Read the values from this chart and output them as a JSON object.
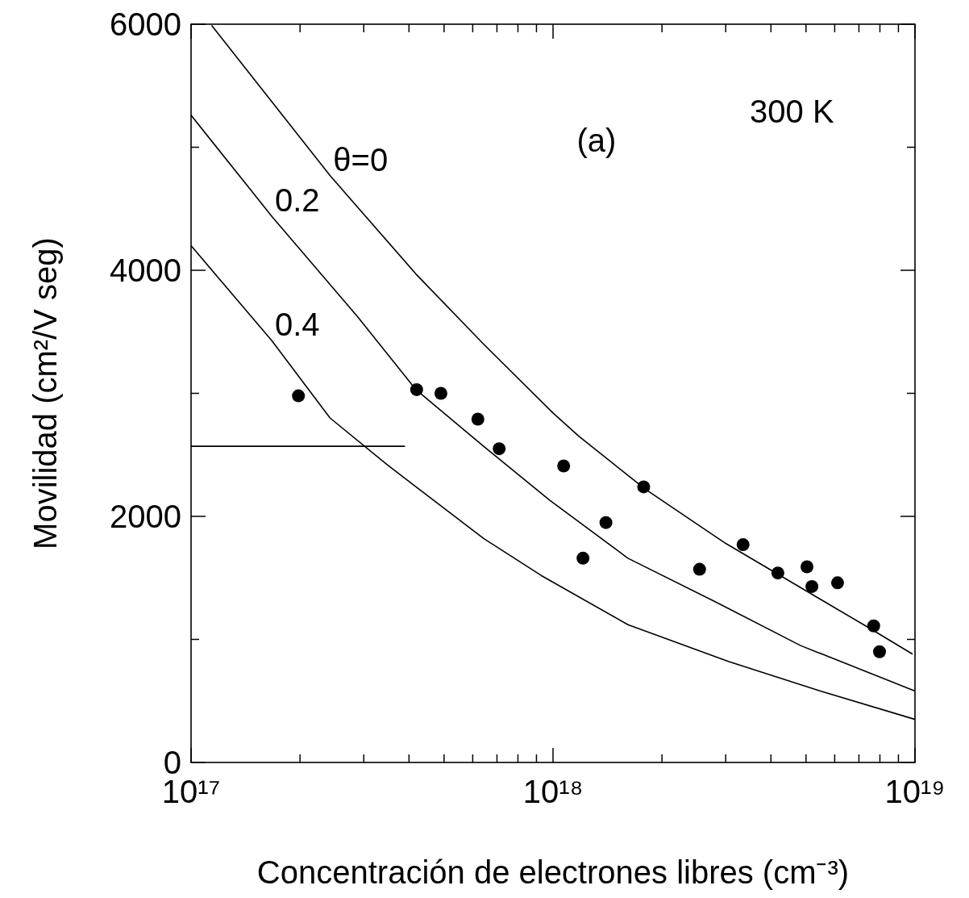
{
  "chart_data": {
    "type": "line",
    "xlabel": "Concentración de electrones libres (cm⁻³)",
    "ylabel": "Movilidad (cm²/V seg)",
    "log": "x",
    "xlim": [
      1e+17,
      1e+19
    ],
    "ylim": [
      0,
      6000
    ],
    "xticks": [
      {
        "value": 1e+17,
        "label": "10¹⁷"
      },
      {
        "value": 2e+17,
        "label": null
      },
      {
        "value": 3e+17,
        "label": null
      },
      {
        "value": 4e+17,
        "label": null
      },
      {
        "value": 5e+17,
        "label": null
      },
      {
        "value": 6e+17,
        "label": null
      },
      {
        "value": 7e+17,
        "label": null
      },
      {
        "value": 8e+17,
        "label": null
      },
      {
        "value": 9e+17,
        "label": null
      },
      {
        "value": 1e+18,
        "label": "10¹⁸"
      },
      {
        "value": 2e+18,
        "label": null
      },
      {
        "value": 3e+18,
        "label": null
      },
      {
        "value": 4e+18,
        "label": null
      },
      {
        "value": 5e+18,
        "label": null
      },
      {
        "value": 6e+18,
        "label": null
      },
      {
        "value": 7e+18,
        "label": null
      },
      {
        "value": 8e+18,
        "label": null
      },
      {
        "value": 9e+18,
        "label": null
      },
      {
        "value": 1e+19,
        "label": "10¹⁹"
      }
    ],
    "yticks": [
      0,
      {
        "value": 1000,
        "label": null
      },
      2000,
      {
        "value": 3000,
        "label": null
      },
      4000,
      {
        "value": 5000,
        "label": null
      },
      6000
    ],
    "grid": false,
    "line_style": "solid",
    "annotations": [
      "(a)",
      "300 K"
    ],
    "series": [
      {
        "name": "θ=0",
        "color": "#000000",
        "marker": "none",
        "x": [
          1.14e+17,
          2.42e+17,
          4.18e+17,
          6.43e+17,
          1e+18,
          1.18e+18,
          1.8e+18,
          3e+18,
          5.1e+18,
          7.5e+18,
          9.85e+18
        ],
        "values": [
          5990,
          4770,
          3970,
          3400,
          2840,
          2650,
          2220,
          1780,
          1380,
          1090,
          880
        ]
      },
      {
        "name": "0.2",
        "color": "#000000",
        "marker": "none",
        "x": [
          1e+17,
          1.67e+17,
          2.89e+17,
          4.18e+17,
          6.43e+17,
          9.8e+17,
          1.61e+18,
          2.79e+18,
          4.83e+18,
          1e+19
        ],
        "values": [
          5260,
          4440,
          3620,
          3030,
          2570,
          2130,
          1660,
          1310,
          950,
          580
        ]
      },
      {
        "name": "0.4",
        "color": "#000000",
        "marker": "none",
        "x": [
          1e+17,
          1.67e+17,
          2.42e+17,
          3.48e+17,
          6.43e+17,
          9.27e+17,
          1.61e+18,
          3.06e+18,
          5.48e+18,
          1e+19
        ],
        "values": [
          4200,
          3430,
          2800,
          2420,
          1820,
          1520,
          1120,
          820,
          580,
          350
        ]
      },
      {
        "color": "#000000",
        "marker": "none",
        "x": [
          1e+17,
          3.9e+17
        ],
        "values": [
          2570,
          2570
        ]
      },
      {
        "type": "scatter",
        "color": "#000000",
        "marker": "circle",
        "x": [
          1.98e+17,
          4.2e+17,
          4.9e+17,
          6.2e+17,
          7.1e+17,
          1.07e+18,
          1.21e+18,
          1.4e+18,
          1.78e+18,
          2.54e+18,
          3.35e+18,
          4.18e+18,
          5.03e+18,
          5.19e+18,
          6.11e+18,
          7.69e+18,
          7.98e+18
        ],
        "values": [
          2980,
          3030,
          3000,
          2790,
          2550,
          2410,
          1660,
          1950,
          2240,
          1570,
          1770,
          1540,
          1590,
          1430,
          1460,
          1110,
          900
        ]
      }
    ]
  }
}
